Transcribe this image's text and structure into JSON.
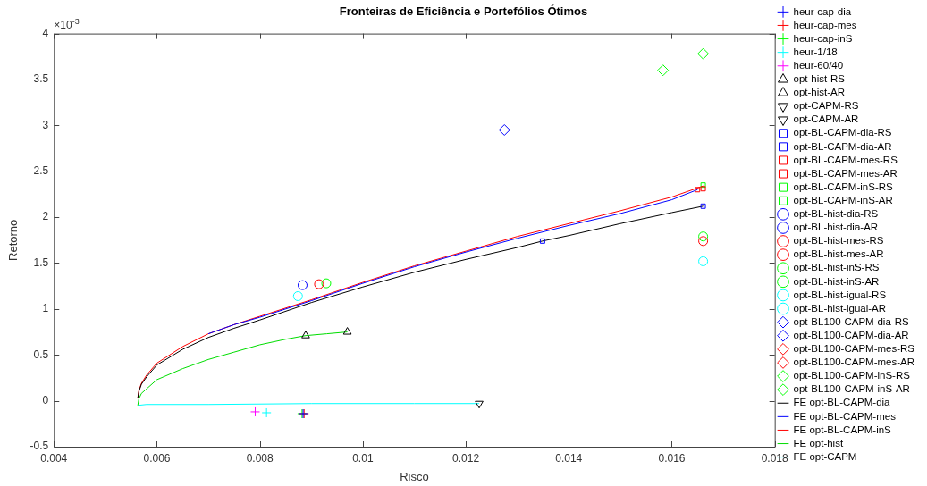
{
  "chart_data": {
    "type": "scatter",
    "title": "Fronteiras de Eficiência e Portefólios Ótimos",
    "xlabel": "Risco",
    "ylabel": "Retorno",
    "annotations": [
      "×10$^{-3}$"
    ],
    "xlim": [
      0.004,
      0.018
    ],
    "xticks": [
      0.004,
      0.006,
      0.008,
      0.01,
      0.012,
      0.014,
      0.016,
      0.018
    ],
    "ylim": [
      -0.5,
      4
    ],
    "yticks": [
      -0.5,
      0,
      0.5,
      1,
      1.5,
      2,
      2.5,
      3,
      3.5,
      4
    ],
    "grid": false,
    "legend": "right",
    "series": [
      {
        "name": "heur-cap-dia",
        "type": "scatter",
        "marker": "cross",
        "color": "#0000ff",
        "x": [
          0.00884
        ],
        "values": [
          -0.14
        ]
      },
      {
        "name": "heur-cap-mes",
        "type": "scatter",
        "marker": "cross",
        "color": "#ff0000",
        "x": [
          0.00886
        ],
        "values": [
          -0.14
        ]
      },
      {
        "name": "heur-cap-inS",
        "type": "scatter",
        "marker": "cross",
        "color": "#00ff00",
        "x": [
          0.00882
        ],
        "values": [
          -0.14
        ]
      },
      {
        "name": "heur-1/18",
        "type": "scatter",
        "marker": "cross",
        "color": "#00ffff",
        "x": [
          0.00813
        ],
        "values": [
          -0.13
        ]
      },
      {
        "name": "heur-60/40",
        "type": "scatter",
        "marker": "cross",
        "color": "#ff00ff",
        "x": [
          0.00791
        ],
        "values": [
          -0.12
        ]
      },
      {
        "name": "opt-hist-RS",
        "type": "scatter",
        "marker": "triangle",
        "color": "#000000",
        "x": [
          0.00889
        ],
        "values": [
          0.71
        ]
      },
      {
        "name": "opt-hist-AR",
        "type": "scatter",
        "marker": "triangle",
        "color": "#000000",
        "x": [
          0.0097
        ],
        "values": [
          0.75
        ]
      },
      {
        "name": "opt-CAPM-RS",
        "type": "scatter",
        "marker": "triangle-down",
        "color": "#000000",
        "x": [
          null
        ],
        "values": [
          null
        ]
      },
      {
        "name": "opt-CAPM-AR",
        "type": "scatter",
        "marker": "triangle-down",
        "color": "#000000",
        "x": [
          0.01226
        ],
        "values": [
          -0.03
        ]
      },
      {
        "name": "opt-BL-CAPM-dia-RS",
        "type": "scatter",
        "marker": "square",
        "color": "#0000ff",
        "x": [
          0.01349
        ],
        "values": [
          1.74
        ]
      },
      {
        "name": "opt-BL-CAPM-dia-AR",
        "type": "scatter",
        "marker": "square",
        "color": "#0000ff",
        "x": [
          0.01661
        ],
        "values": [
          2.12
        ]
      },
      {
        "name": "opt-BL-CAPM-mes-RS",
        "type": "scatter",
        "marker": "square",
        "color": "#ff0000",
        "x": [
          0.0165
        ],
        "values": [
          2.3
        ]
      },
      {
        "name": "opt-BL-CAPM-mes-AR",
        "type": "scatter",
        "marker": "square",
        "color": "#ff0000",
        "x": [
          0.01661
        ],
        "values": [
          2.31
        ]
      },
      {
        "name": "opt-BL-CAPM-inS-RS",
        "type": "scatter",
        "marker": "square",
        "color": "#00ff00",
        "x": [
          null
        ],
        "values": [
          null
        ]
      },
      {
        "name": "opt-BL-CAPM-inS-AR",
        "type": "scatter",
        "marker": "square",
        "color": "#00ff00",
        "x": [
          0.01661
        ],
        "values": [
          2.35
        ]
      },
      {
        "name": "opt-BL-hist-dia-RS",
        "type": "scatter",
        "marker": "circle",
        "color": "#0000ff",
        "x": [
          0.00883
        ],
        "values": [
          1.26
        ]
      },
      {
        "name": "opt-BL-hist-dia-AR",
        "type": "scatter",
        "marker": "circle",
        "color": "#0000ff",
        "x": [
          null
        ],
        "values": [
          null
        ]
      },
      {
        "name": "opt-BL-hist-mes-RS",
        "type": "scatter",
        "marker": "circle",
        "color": "#ff0000",
        "x": [
          0.00915
        ],
        "values": [
          1.27
        ]
      },
      {
        "name": "opt-BL-hist-mes-AR",
        "type": "scatter",
        "marker": "circle",
        "color": "#ff0000",
        "x": [
          0.01661
        ],
        "values": [
          1.74
        ]
      },
      {
        "name": "opt-BL-hist-inS-RS",
        "type": "scatter",
        "marker": "circle",
        "color": "#00ff00",
        "x": [
          0.00929
        ],
        "values": [
          1.28
        ]
      },
      {
        "name": "opt-BL-hist-inS-AR",
        "type": "scatter",
        "marker": "circle",
        "color": "#00ff00",
        "x": [
          0.01661
        ],
        "values": [
          1.79
        ]
      },
      {
        "name": "opt-BL-hist-igual-RS",
        "type": "scatter",
        "marker": "circle",
        "color": "#00ffff",
        "x": [
          0.00874
        ],
        "values": [
          1.14
        ]
      },
      {
        "name": "opt-BL-hist-igual-AR",
        "type": "scatter",
        "marker": "circle",
        "color": "#00ffff",
        "x": [
          0.01661
        ],
        "values": [
          1.52
        ]
      },
      {
        "name": "opt-BL100-CAPM-dia-RS",
        "type": "scatter",
        "marker": "diamond",
        "color": "#0000ff",
        "x": [
          0.01275
        ],
        "values": [
          2.95
        ]
      },
      {
        "name": "opt-BL100-CAPM-dia-AR",
        "type": "scatter",
        "marker": "diamond",
        "color": "#0000ff",
        "x": [
          null
        ],
        "values": [
          null
        ]
      },
      {
        "name": "opt-BL100-CAPM-mes-RS",
        "type": "scatter",
        "marker": "diamond",
        "color": "#ff0000",
        "x": [
          null
        ],
        "values": [
          null
        ]
      },
      {
        "name": "opt-BL100-CAPM-mes-AR",
        "type": "scatter",
        "marker": "diamond",
        "color": "#ff0000",
        "x": [
          null
        ],
        "values": [
          null
        ]
      },
      {
        "name": "opt-BL100-CAPM-inS-RS",
        "type": "scatter",
        "marker": "diamond",
        "color": "#00ff00",
        "x": [
          0.01583
        ],
        "values": [
          3.6
        ]
      },
      {
        "name": "opt-BL100-CAPM-inS-AR",
        "type": "scatter",
        "marker": "diamond",
        "color": "#00ff00",
        "x": [
          0.01661
        ],
        "values": [
          3.78
        ]
      },
      {
        "name": "FE opt-BL-CAPM-dia",
        "type": "line",
        "marker": "none",
        "color": "#000000",
        "x": [
          0.00563,
          0.00565,
          0.0057,
          0.0058,
          0.006,
          0.0065,
          0.007,
          0.0075,
          0.008,
          0.009,
          0.01,
          0.011,
          0.012,
          0.013,
          0.01349,
          0.014,
          0.015,
          0.016,
          0.01661
        ],
        "values": [
          0.03,
          0.1,
          0.18,
          0.26,
          0.39,
          0.56,
          0.69,
          0.79,
          0.88,
          1.07,
          1.24,
          1.4,
          1.54,
          1.67,
          1.74,
          1.8,
          1.93,
          2.05,
          2.12
        ]
      },
      {
        "name": "FE opt-BL-CAPM-mes",
        "type": "line",
        "marker": "none",
        "color": "#0000ff",
        "x": [
          0.007,
          0.0075,
          0.008,
          0.009,
          0.01,
          0.011,
          0.012,
          0.013,
          0.014,
          0.015,
          0.016,
          0.0165
        ],
        "values": [
          0.73,
          0.83,
          0.91,
          1.09,
          1.28,
          1.46,
          1.62,
          1.77,
          1.91,
          2.04,
          2.19,
          2.3
        ]
      },
      {
        "name": "FE opt-BL-CAPM-inS",
        "type": "line",
        "marker": "none",
        "color": "#ff0000",
        "x": [
          0.00563,
          0.00565,
          0.0057,
          0.0058,
          0.006,
          0.0065,
          0.007,
          0.0075,
          0.008,
          0.009,
          0.01,
          0.011,
          0.012,
          0.013,
          0.014,
          0.015,
          0.016,
          0.01661
        ],
        "values": [
          0.03,
          0.11,
          0.19,
          0.28,
          0.41,
          0.59,
          0.73,
          0.83,
          0.92,
          1.1,
          1.29,
          1.47,
          1.63,
          1.79,
          1.93,
          2.07,
          2.22,
          2.34
        ]
      },
      {
        "name": "FE opt-hist",
        "type": "line",
        "marker": "none",
        "color": "#00dd00",
        "x": [
          0.00563,
          0.00565,
          0.0057,
          0.0058,
          0.006,
          0.0065,
          0.007,
          0.0075,
          0.008,
          0.0085,
          0.00889,
          0.0093,
          0.0097
        ],
        "values": [
          -0.05,
          0.02,
          0.08,
          0.13,
          0.23,
          0.35,
          0.45,
          0.53,
          0.61,
          0.67,
          0.71,
          0.73,
          0.75
        ]
      },
      {
        "name": "FE opt-CAPM",
        "type": "line",
        "marker": "none",
        "color": "#00ffff",
        "x": [
          0.00563,
          0.0058,
          0.007,
          0.009,
          0.011,
          0.01226
        ],
        "values": [
          -0.05,
          -0.04,
          -0.04,
          -0.03,
          -0.03,
          -0.03
        ]
      }
    ]
  }
}
